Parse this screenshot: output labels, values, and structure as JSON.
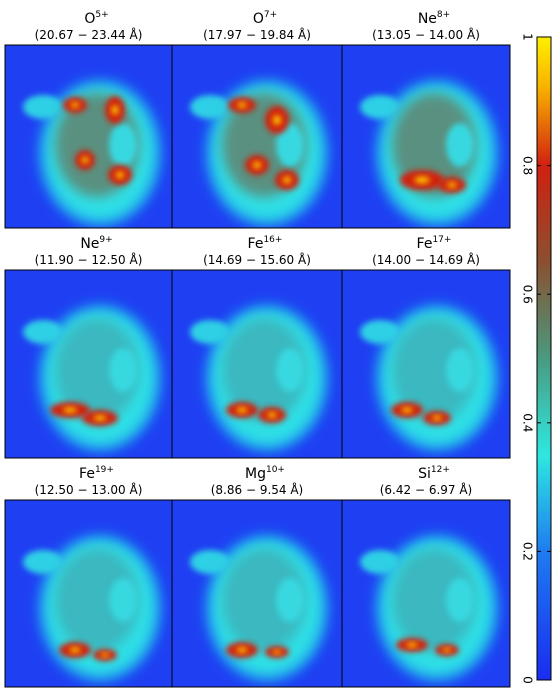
{
  "panels": [
    {
      "ion": "O",
      "charge": "5+",
      "range": "(20.67 − 23.44 Å)"
    },
    {
      "ion": "O",
      "charge": "7+",
      "range": "(17.97 − 19.84 Å)"
    },
    {
      "ion": "Ne",
      "charge": "8+",
      "range": "(13.05 − 14.00 Å)"
    },
    {
      "ion": "Ne",
      "charge": "9+",
      "range": "(11.90 − 12.50 Å)"
    },
    {
      "ion": "Fe",
      "charge": "16+",
      "range": "(14.69 − 15.60 Å)"
    },
    {
      "ion": "Fe",
      "charge": "17+",
      "range": "(14.00 − 14.69 Å)"
    },
    {
      "ion": "Fe",
      "charge": "19+",
      "range": "(12.50 − 13.00 Å)"
    },
    {
      "ion": "Mg",
      "charge": "10+",
      "range": "(8.86 − 9.54 Å)"
    },
    {
      "ion": "Si",
      "charge": "12+",
      "range": "(6.42 − 6.97 Å)"
    }
  ],
  "colorbar": {
    "lim": [
      0,
      1
    ],
    "ticks": [
      0,
      0.2,
      0.4,
      0.6,
      0.8,
      1
    ]
  }
}
